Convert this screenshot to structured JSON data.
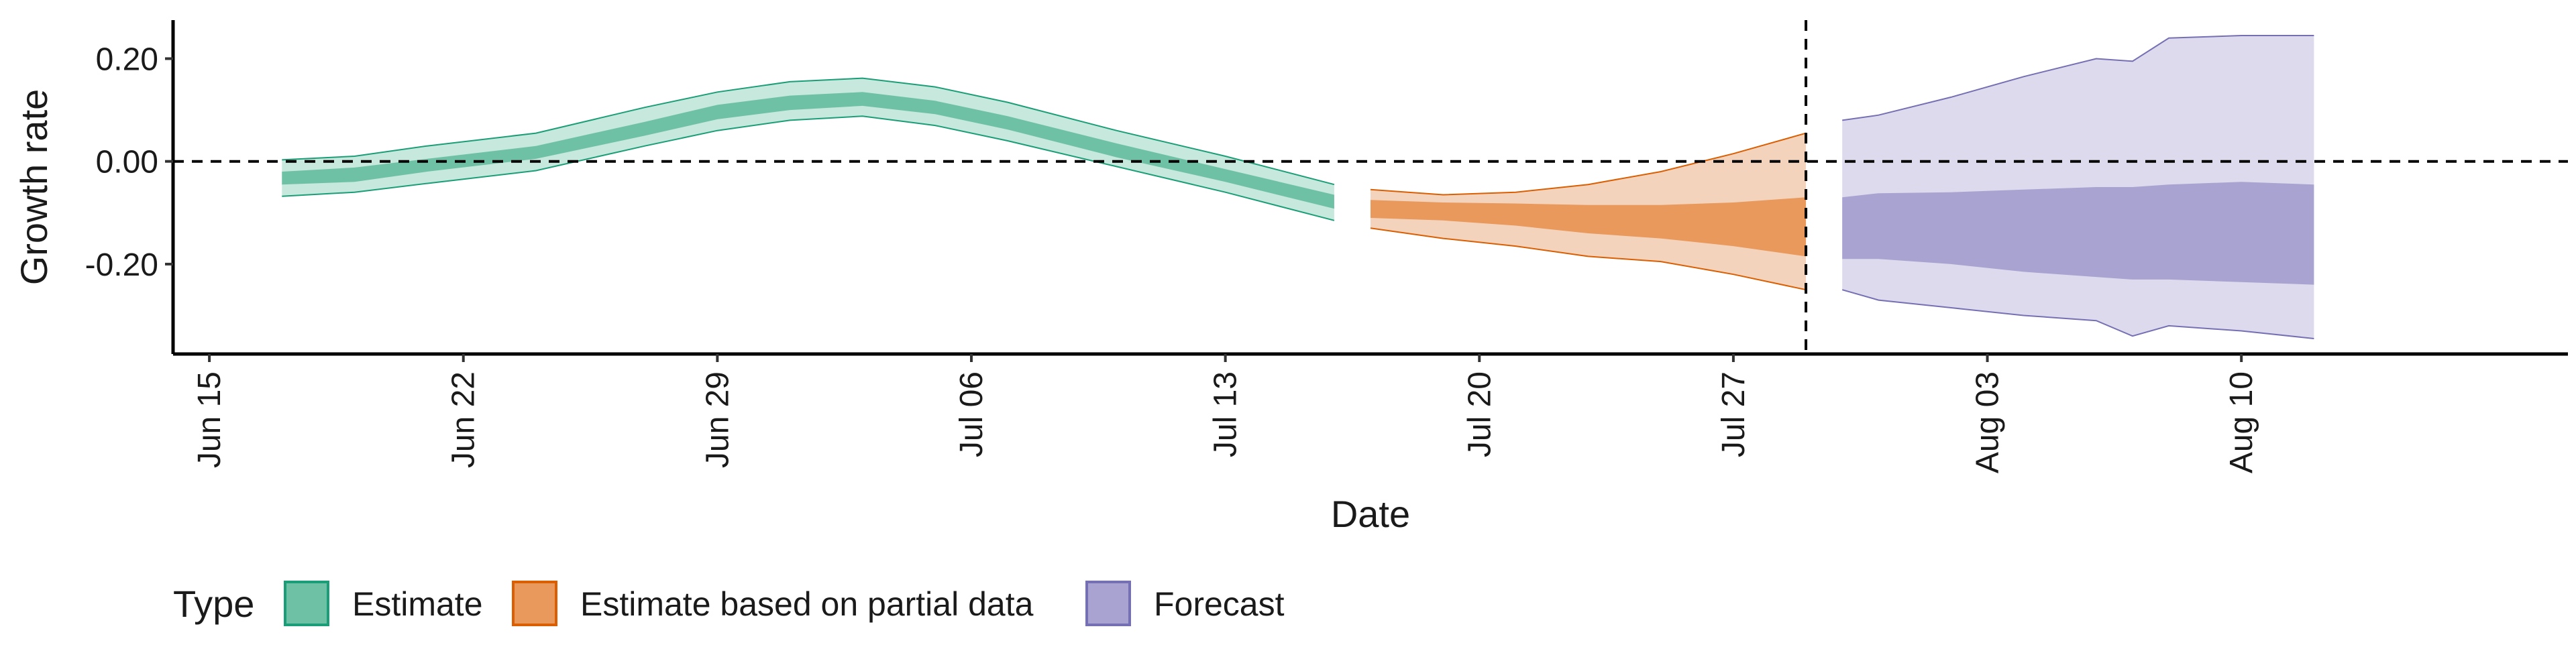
{
  "chart_data": {
    "type": "area",
    "xlabel": "Date",
    "ylabel": "Growth rate",
    "x_axis": {
      "type": "date",
      "range": [
        "2020-06-14",
        "2020-08-19"
      ],
      "tick_dates": [
        "2020-06-15",
        "2020-06-22",
        "2020-06-29",
        "2020-07-06",
        "2020-07-13",
        "2020-07-20",
        "2020-07-27",
        "2020-08-03",
        "2020-08-10"
      ],
      "tick_labels": [
        "Jun 15",
        "Jun 22",
        "Jun 29",
        "Jul 06",
        "Jul 13",
        "Jul 20",
        "Jul 27",
        "Aug 03",
        "Aug 10"
      ]
    },
    "y_axis": {
      "range": [
        -0.375,
        0.275
      ],
      "ticks": [
        0.2,
        0.0,
        -0.2
      ],
      "tick_labels": [
        "0.20",
        "0.00",
        "-0.20"
      ]
    },
    "reference_lines": {
      "horizontal_y": 0.0,
      "vertical_date": "2020-07-29"
    },
    "legend": {
      "title": "Type",
      "position": "bottom",
      "entries": [
        {
          "label": "Estimate",
          "fill": "#6fc1a5",
          "stroke": "#1b9e77"
        },
        {
          "label": "Estimate based on partial data",
          "fill": "#e8995b",
          "stroke": "#d95f02"
        },
        {
          "label": "Forecast",
          "fill": "#a8a3d1",
          "stroke": "#7570b3"
        }
      ]
    },
    "series": [
      {
        "name": "Estimate",
        "colors": {
          "outer": "#c6e8dd",
          "inner": "#6fc1a5",
          "line": "#1b9e77"
        },
        "points": [
          {
            "date": "2020-06-17",
            "outer": [
              -0.068,
              0.003
            ],
            "inner": [
              -0.045,
              -0.02
            ]
          },
          {
            "date": "2020-06-19",
            "outer": [
              -0.06,
              0.01
            ],
            "inner": [
              -0.04,
              -0.012
            ]
          },
          {
            "date": "2020-06-21",
            "outer": [
              -0.043,
              0.03
            ],
            "inner": [
              -0.02,
              0.005
            ]
          },
          {
            "date": "2020-06-24",
            "outer": [
              -0.018,
              0.055
            ],
            "inner": [
              0.005,
              0.03
            ]
          },
          {
            "date": "2020-06-27",
            "outer": [
              0.03,
              0.105
            ],
            "inner": [
              0.05,
              0.077
            ]
          },
          {
            "date": "2020-06-29",
            "outer": [
              0.06,
              0.135
            ],
            "inner": [
              0.082,
              0.11
            ]
          },
          {
            "date": "2020-07-01",
            "outer": [
              0.08,
              0.155
            ],
            "inner": [
              0.1,
              0.128
            ]
          },
          {
            "date": "2020-07-03",
            "outer": [
              0.088,
              0.162
            ],
            "inner": [
              0.108,
              0.135
            ]
          },
          {
            "date": "2020-07-05",
            "outer": [
              0.07,
              0.145
            ],
            "inner": [
              0.092,
              0.118
            ]
          },
          {
            "date": "2020-07-07",
            "outer": [
              0.04,
              0.115
            ],
            "inner": [
              0.062,
              0.088
            ]
          },
          {
            "date": "2020-07-10",
            "outer": [
              -0.01,
              0.06
            ],
            "inner": [
              0.008,
              0.035
            ]
          },
          {
            "date": "2020-07-13",
            "outer": [
              -0.06,
              0.01
            ],
            "inner": [
              -0.04,
              -0.015
            ]
          },
          {
            "date": "2020-07-16",
            "outer": [
              -0.115,
              -0.045
            ],
            "inner": [
              -0.092,
              -0.065
            ]
          }
        ]
      },
      {
        "name": "Estimate based on partial data",
        "colors": {
          "outer": "#f4d3bd",
          "inner": "#e8995b",
          "line": "#d95f02"
        },
        "points": [
          {
            "date": "2020-07-17",
            "outer": [
              -0.13,
              -0.055
            ],
            "inner": [
              -0.11,
              -0.075
            ]
          },
          {
            "date": "2020-07-19",
            "outer": [
              -0.15,
              -0.065
            ],
            "inner": [
              -0.115,
              -0.08
            ]
          },
          {
            "date": "2020-07-21",
            "outer": [
              -0.165,
              -0.06
            ],
            "inner": [
              -0.125,
              -0.082
            ]
          },
          {
            "date": "2020-07-23",
            "outer": [
              -0.185,
              -0.045
            ],
            "inner": [
              -0.14,
              -0.085
            ]
          },
          {
            "date": "2020-07-25",
            "outer": [
              -0.195,
              -0.02
            ],
            "inner": [
              -0.15,
              -0.085
            ]
          },
          {
            "date": "2020-07-27",
            "outer": [
              -0.22,
              0.015
            ],
            "inner": [
              -0.165,
              -0.08
            ]
          },
          {
            "date": "2020-07-29",
            "outer": [
              -0.25,
              0.055
            ],
            "inner": [
              -0.185,
              -0.07
            ]
          }
        ]
      },
      {
        "name": "Forecast",
        "colors": {
          "outer": "#dcdaec",
          "inner": "#a8a3d1",
          "line": "#7570b3"
        },
        "points": [
          {
            "date": "2020-07-30",
            "outer": [
              -0.25,
              0.08
            ],
            "inner": [
              -0.19,
              -0.07
            ]
          },
          {
            "date": "2020-07-31",
            "outer": [
              -0.27,
              0.09
            ],
            "inner": [
              -0.19,
              -0.062
            ]
          },
          {
            "date": "2020-08-02",
            "outer": [
              -0.285,
              0.125
            ],
            "inner": [
              -0.2,
              -0.06
            ]
          },
          {
            "date": "2020-08-04",
            "outer": [
              -0.3,
              0.165
            ],
            "inner": [
              -0.215,
              -0.055
            ]
          },
          {
            "date": "2020-08-06",
            "outer": [
              -0.31,
              0.2
            ],
            "inner": [
              -0.225,
              -0.05
            ]
          },
          {
            "date": "2020-08-07",
            "outer": [
              -0.34,
              0.195
            ],
            "inner": [
              -0.23,
              -0.05
            ]
          },
          {
            "date": "2020-08-08",
            "outer": [
              -0.32,
              0.24
            ],
            "inner": [
              -0.23,
              -0.045
            ]
          },
          {
            "date": "2020-08-10",
            "outer": [
              -0.33,
              0.245
            ],
            "inner": [
              -0.235,
              -0.04
            ]
          },
          {
            "date": "2020-08-12",
            "outer": [
              -0.345,
              0.245
            ],
            "inner": [
              -0.24,
              -0.045
            ]
          }
        ]
      }
    ]
  }
}
